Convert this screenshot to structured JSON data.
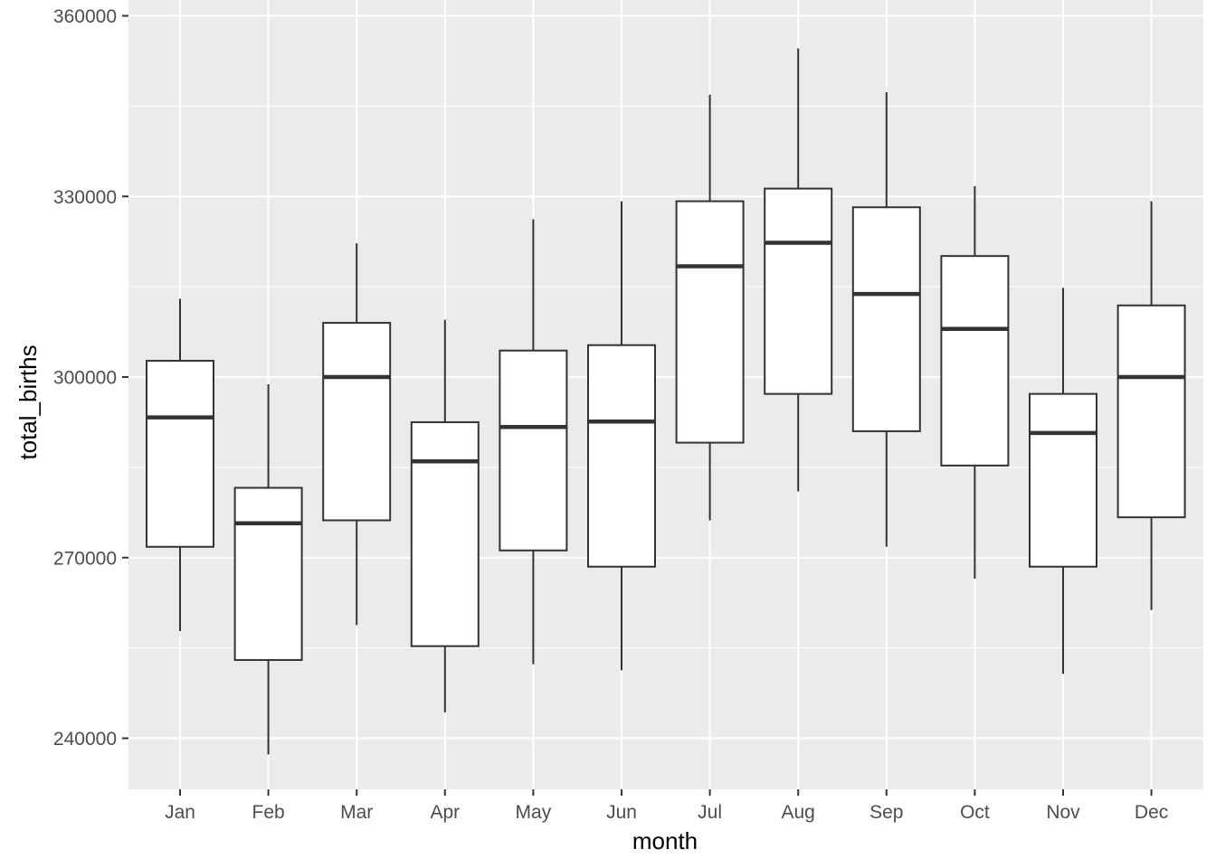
{
  "chart_data": {
    "type": "boxplot",
    "title": "",
    "xlabel": "month",
    "ylabel": "total_births",
    "ylim": [
      231000,
      360000
    ],
    "yticks": [
      240000,
      270000,
      300000,
      330000,
      360000
    ],
    "ytick_labels": [
      "240000",
      "270000",
      "300000",
      "330000",
      "360000"
    ],
    "grid": true,
    "panel_background": "#ebebeb",
    "grid_color": "#ffffff",
    "box_fill": "#ffffff",
    "line_color": "#333333",
    "categories": [
      "Jan",
      "Feb",
      "Mar",
      "Apr",
      "May",
      "Jun",
      "Jul",
      "Aug",
      "Sep",
      "Oct",
      "Nov",
      "Dec"
    ],
    "boxes": [
      {
        "month": "Jan",
        "min": 257800,
        "q1": 271800,
        "median": 293300,
        "q3": 302700,
        "max": 313000
      },
      {
        "month": "Feb",
        "min": 237300,
        "q1": 253000,
        "median": 275700,
        "q3": 281600,
        "max": 298800
      },
      {
        "month": "Mar",
        "min": 258800,
        "q1": 276200,
        "median": 300000,
        "q3": 309000,
        "max": 322200
      },
      {
        "month": "Apr",
        "min": 244300,
        "q1": 255300,
        "median": 286000,
        "q3": 292500,
        "max": 309500
      },
      {
        "month": "May",
        "min": 252300,
        "q1": 271200,
        "median": 291700,
        "q3": 304400,
        "max": 326200
      },
      {
        "month": "Jun",
        "min": 251300,
        "q1": 268500,
        "median": 292600,
        "q3": 305300,
        "max": 329200
      },
      {
        "month": "Jul",
        "min": 276200,
        "q1": 289100,
        "median": 318400,
        "q3": 329200,
        "max": 346900
      },
      {
        "month": "Aug",
        "min": 281000,
        "q1": 297200,
        "median": 322300,
        "q3": 331300,
        "max": 354600
      },
      {
        "month": "Sep",
        "min": 271800,
        "q1": 291000,
        "median": 313800,
        "q3": 328200,
        "max": 347300
      },
      {
        "month": "Oct",
        "min": 266500,
        "q1": 285300,
        "median": 308000,
        "q3": 320100,
        "max": 331700
      },
      {
        "month": "Nov",
        "min": 250700,
        "q1": 268500,
        "median": 290700,
        "q3": 297200,
        "max": 314800
      },
      {
        "month": "Dec",
        "min": 261300,
        "q1": 276700,
        "median": 300000,
        "q3": 311900,
        "max": 329200
      }
    ]
  }
}
